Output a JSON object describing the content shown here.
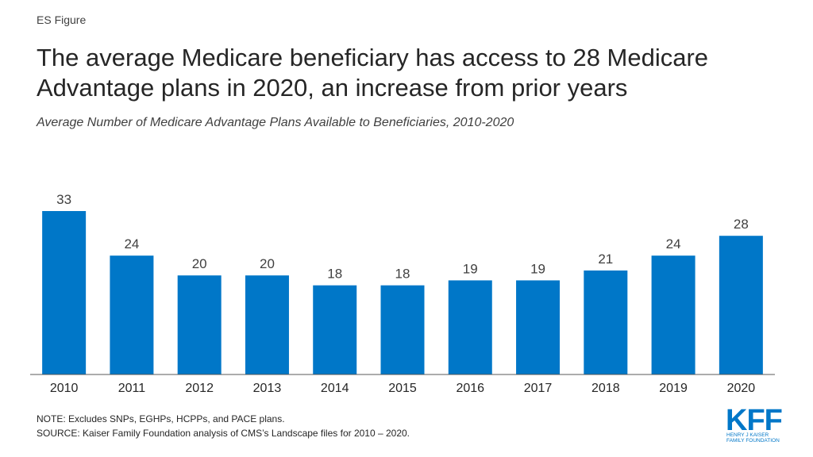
{
  "header": {
    "figure_label": "ES Figure",
    "title": "The average Medicare beneficiary has access to 28 Medicare Advantage plans in 2020, an increase from prior years",
    "subtitle": "Average Number of Medicare Advantage Plans Available to Beneficiaries, 2010-2020"
  },
  "footer": {
    "note": "NOTE: Excludes SNPs, EGHPs, HCPPs, and PACE plans.",
    "source": "SOURCE: Kaiser Family Foundation analysis of CMS’s Landscape files for 2010 – 2020."
  },
  "logo": {
    "mark": "KFF",
    "line1": "HENRY J KAISER",
    "line2": "FAMILY FOUNDATION"
  },
  "colors": {
    "bar": "#0077c8",
    "axis": "#595959",
    "logo": "#0077c8"
  },
  "chart_data": {
    "type": "bar",
    "categories": [
      "2010",
      "2011",
      "2012",
      "2013",
      "2014",
      "2015",
      "2016",
      "2017",
      "2018",
      "2019",
      "2020"
    ],
    "values": [
      33,
      24,
      20,
      20,
      18,
      18,
      19,
      19,
      21,
      24,
      28
    ],
    "title": "Average Number of Medicare Advantage Plans Available to Beneficiaries, 2010-2020",
    "xlabel": "",
    "ylabel": "",
    "ylim": [
      0,
      33
    ],
    "grid": false,
    "data_labels": true
  }
}
